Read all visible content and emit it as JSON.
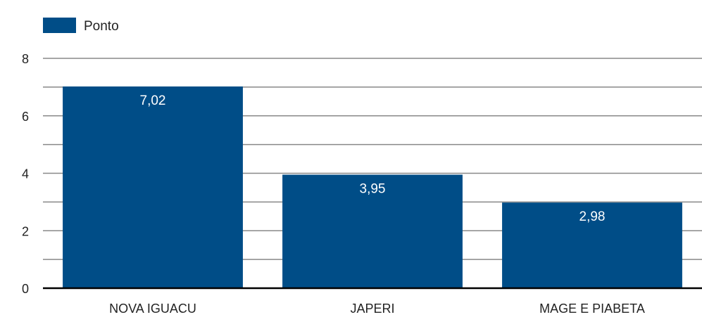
{
  "chart_data": {
    "type": "bar",
    "categories": [
      "NOVA IGUACU",
      "JAPERI",
      "MAGE E PIABETA"
    ],
    "series": [
      {
        "name": "Ponto",
        "values": [
          7.02,
          3.95,
          2.98
        ],
        "value_labels": [
          "7,02",
          "3,95",
          "2,98"
        ],
        "color": "#004d87"
      }
    ],
    "y_ticks": [
      0,
      2,
      4,
      6,
      8
    ],
    "ylim": [
      0,
      8
    ],
    "minor_gridlines": [
      1,
      3,
      5,
      7
    ],
    "grid": true,
    "legend_position": "top-left",
    "title": "",
    "xlabel": "",
    "ylabel": ""
  }
}
